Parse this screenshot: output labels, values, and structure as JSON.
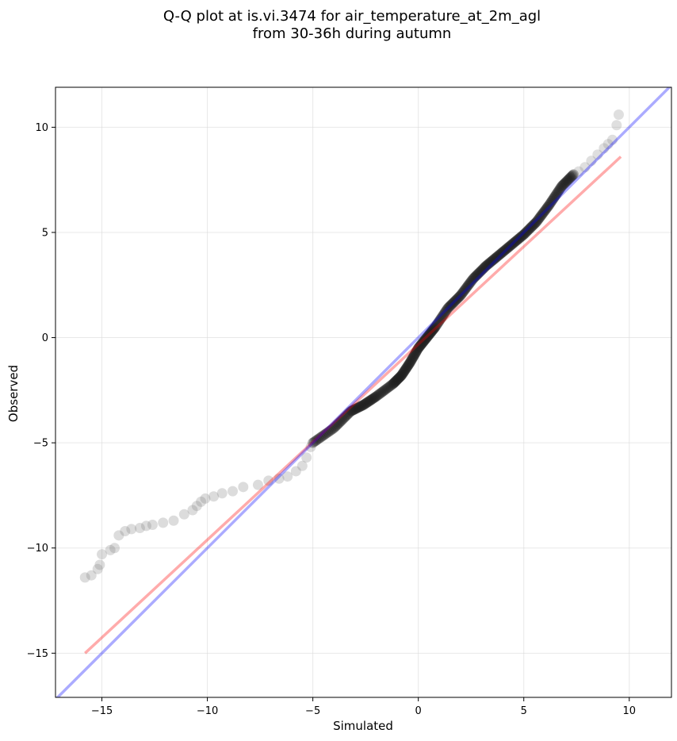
{
  "chart_data": {
    "type": "scatter",
    "title": [
      "Q-Q plot at is.vi.3474 for air_temperature_at_2m_agl",
      "from 30-36h during autumn"
    ],
    "xlabel": "Simulated",
    "ylabel": "Observed",
    "xlim": [
      -17.2,
      12.0
    ],
    "ylim": [
      -17.1,
      11.9
    ],
    "xticks": [
      -15,
      -10,
      -5,
      0,
      5,
      10
    ],
    "yticks": [
      -15,
      -10,
      -5,
      0,
      5,
      10
    ],
    "tick_labels_x": [
      "−15",
      "−10",
      "−5",
      "0",
      "5",
      "10"
    ],
    "tick_labels_y": [
      "−15",
      "−10",
      "−5",
      "0",
      "5",
      "10"
    ],
    "grid": true,
    "colors": {
      "points": "#000000",
      "fit_line": "#ff0000",
      "identity_line": "#0000ff",
      "grid": "#d9d9d9"
    },
    "lines": [
      {
        "role": "fit",
        "color": "#ff0000",
        "x": [
          -15.8,
          9.6
        ],
        "y": [
          -15.0,
          8.6
        ]
      },
      {
        "role": "identity",
        "color": "#0000ff",
        "x": [
          -17.2,
          12.0
        ],
        "y": [
          -17.2,
          12.0
        ]
      }
    ],
    "tail_points": {
      "x": [
        -15.8,
        -15.5,
        -15.2,
        -15.1,
        -15.0,
        -14.6,
        -14.4,
        -14.2,
        -13.9,
        -13.6,
        -13.2,
        -12.9,
        -12.6,
        -12.1,
        -11.6,
        -11.1,
        -10.7,
        -10.5,
        -10.3,
        -10.1,
        -9.7,
        -9.3,
        -8.8,
        -8.3,
        -7.6,
        -7.1,
        -6.6,
        -6.2,
        -5.8,
        -5.5,
        -5.3,
        -5.1
      ],
      "y": [
        -11.4,
        -11.3,
        -11.0,
        -10.8,
        -10.3,
        -10.1,
        -10.0,
        -9.4,
        -9.2,
        -9.1,
        -9.05,
        -8.95,
        -8.9,
        -8.8,
        -8.7,
        -8.4,
        -8.2,
        -8.0,
        -7.8,
        -7.65,
        -7.55,
        -7.4,
        -7.3,
        -7.1,
        -7.0,
        -6.8,
        -6.7,
        -6.6,
        -6.35,
        -6.1,
        -5.7,
        -5.2
      ]
    },
    "main_curve": {
      "x": [
        -5.0,
        -4.0,
        -3.2,
        -2.6,
        -2.0,
        -1.2,
        -0.8,
        -0.4,
        0.0,
        0.4,
        0.8,
        1.4,
        2.0,
        2.6,
        3.2,
        3.8,
        4.4,
        5.0,
        5.6,
        6.2,
        6.8,
        7.4
      ],
      "y": [
        -5.0,
        -4.3,
        -3.5,
        -3.2,
        -2.8,
        -2.2,
        -1.8,
        -1.2,
        -0.5,
        0.0,
        0.5,
        1.4,
        2.0,
        2.8,
        3.4,
        3.9,
        4.4,
        4.9,
        5.5,
        6.3,
        7.2,
        7.8
      ]
    },
    "upper_tail_points": {
      "x": [
        7.6,
        7.9,
        8.2,
        8.5,
        8.8,
        9.0,
        9.2,
        9.4,
        9.5
      ],
      "y": [
        7.9,
        8.1,
        8.4,
        8.7,
        9.0,
        9.2,
        9.4,
        10.1,
        10.6
      ]
    }
  }
}
